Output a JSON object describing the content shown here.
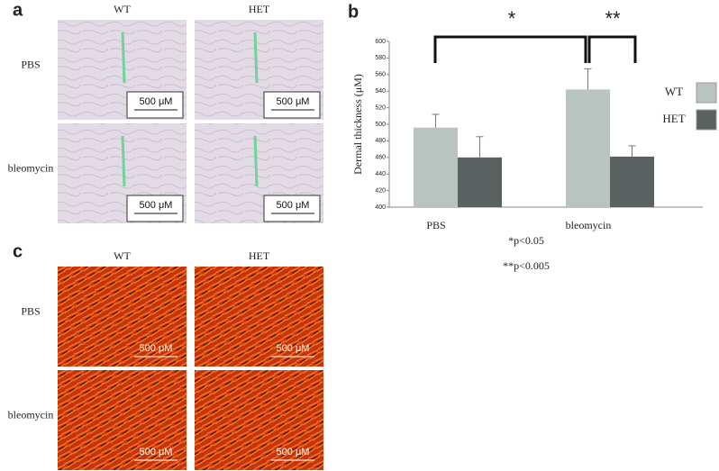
{
  "panels": {
    "a": {
      "label": "a",
      "columns": [
        "WT",
        "HET"
      ],
      "rows": [
        "PBS",
        "bleomycin"
      ],
      "scale_bars": [
        "500 μM",
        "500 μM",
        "500 μM",
        "500 μM"
      ]
    },
    "c": {
      "label": "c",
      "columns": [
        "WT",
        "HET"
      ],
      "rows": [
        "PBS",
        "bleomycin"
      ],
      "scale_bars": [
        "500 μM",
        "500 μM",
        "500 μM",
        "500 μM"
      ]
    }
  },
  "chart_data": {
    "type": "bar",
    "panel_label": "b",
    "y_label": "Dermal thickness (μM)",
    "categories": [
      "PBS",
      "bleomycin"
    ],
    "series": [
      {
        "name": "WT",
        "color": "#b9c4c1",
        "values": [
          496,
          542
        ],
        "errors": [
          16,
          25
        ]
      },
      {
        "name": "HET",
        "color": "#5a6261",
        "values": [
          460,
          461
        ],
        "errors": [
          25,
          13
        ]
      }
    ],
    "ylim": [
      400,
      600
    ],
    "yticks": [
      400,
      420,
      440,
      460,
      480,
      500,
      520,
      540,
      560,
      580,
      600
    ],
    "legend": "right",
    "annotations": [
      "*",
      "**",
      "*p<0.05",
      "**p<0.005"
    ]
  }
}
